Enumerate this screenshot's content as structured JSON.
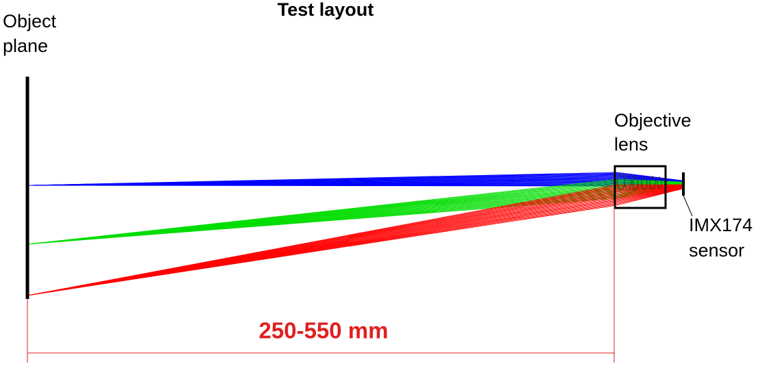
{
  "title": "Test layout",
  "labels": {
    "object_plane": [
      "Object",
      "plane"
    ],
    "objective_lens": [
      "Objective",
      "lens"
    ],
    "sensor": [
      "IMX174",
      "sensor"
    ],
    "distance": "250-550 mm"
  }
}
